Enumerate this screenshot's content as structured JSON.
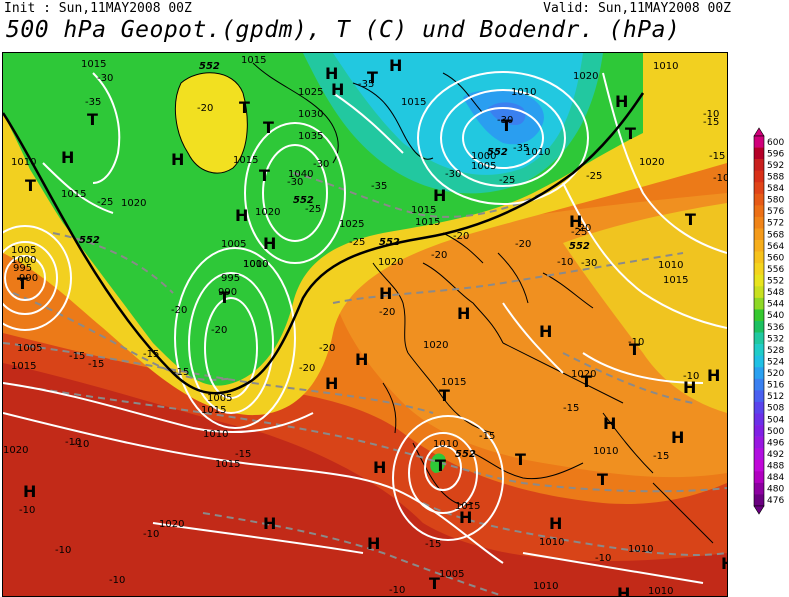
{
  "header": {
    "init": "Init : Sun,11MAY2008 00Z",
    "valid": "Valid: Sun,11MAY2008 00Z",
    "title": "500 hPa Geopot.(gpdm), T (C) und Bodendr. (hPa)"
  },
  "legend": {
    "levels": [
      "600",
      "596",
      "592",
      "588",
      "584",
      "580",
      "576",
      "572",
      "568",
      "564",
      "560",
      "556",
      "552",
      "548",
      "544",
      "540",
      "536",
      "532",
      "528",
      "524",
      "520",
      "516",
      "512",
      "508",
      "504",
      "500",
      "496",
      "492",
      "488",
      "484",
      "480",
      "476"
    ],
    "colors": [
      "#d0007a",
      "#b40028",
      "#c8201e",
      "#d83018",
      "#e04418",
      "#e65a16",
      "#ec7016",
      "#f08418",
      "#f49a1a",
      "#f6ae1c",
      "#f6c21c",
      "#f4d41e",
      "#e8e41e",
      "#c8e020",
      "#8ed826",
      "#36c830",
      "#1cc060",
      "#20c8a0",
      "#20ccc8",
      "#20c0e4",
      "#2aa0f0",
      "#3a80f0",
      "#4a60f0",
      "#5a44ec",
      "#6c30e8",
      "#8020e4",
      "#9818e0",
      "#b010e0",
      "#c008d8",
      "#b000c0",
      "#8c00a0",
      "#6a0080"
    ]
  },
  "map": {
    "field_colors": {
      "deep_red": "#c02818",
      "red": "#d84016",
      "orange": "#ec7a18",
      "yellow": "#f2d020",
      "green": "#2ec838",
      "teal": "#22c8a0",
      "cyan": "#22c8e0",
      "blue": "#2a9ef0",
      "isobar": "#ffffff",
      "isotherm": "#7a7a7a",
      "coast": "#000000"
    },
    "pressure_labels": [
      "1015",
      "1015",
      "1010",
      "1015",
      "1020",
      "1005",
      "1000",
      "995",
      "990",
      "1025",
      "1030",
      "1035",
      "1040",
      "1010",
      "1005",
      "1000",
      "995",
      "990",
      "1025",
      "1020",
      "1015",
      "1015",
      "1010",
      "1005",
      "1000",
      "1015",
      "1020",
      "1010",
      "1010",
      "1020",
      "1015",
      "1010",
      "1005",
      "1015",
      "1020",
      "1015",
      "1020",
      "1010",
      "1010",
      "1010",
      "1015",
      "1020",
      "1010",
      "1015",
      "1020",
      "1015",
      "1010",
      "1005",
      "1020",
      "1015",
      "1010",
      "1010",
      "1005"
    ],
    "temp_labels": [
      "-30",
      "-35",
      "-20",
      "-30",
      "-30",
      "-35",
      "-35",
      "-25",
      "-25",
      "-20",
      "-30",
      "-35",
      "-25",
      "-30",
      "-20",
      "-20",
      "-25",
      "-20",
      "-15",
      "-15",
      "-10",
      "-20",
      "-15",
      "-20",
      "-25",
      "-30",
      "-25",
      "-20",
      "-15",
      "-10",
      "-15",
      "-20",
      "-20",
      "-15",
      "-15",
      "-10",
      "-10",
      "-15",
      "-10",
      "-15",
      "-10",
      "-10",
      "-10",
      "-15",
      "-10",
      "-10",
      "-10",
      "-15",
      "-10",
      "-10"
    ],
    "height_labels": [
      "552",
      "552",
      "552",
      "552",
      "552",
      "552",
      "552"
    ],
    "high_marker": "H",
    "low_marker": "T"
  }
}
